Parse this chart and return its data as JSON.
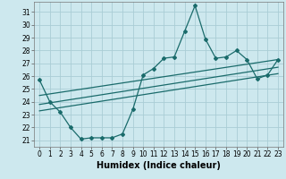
{
  "xlabel": "Humidex (Indice chaleur)",
  "bg_color": "#cde8ee",
  "grid_color": "#aacdd5",
  "line_color": "#1a6b6b",
  "xlim": [
    -0.5,
    23.5
  ],
  "ylim_min": 20.5,
  "ylim_max": 31.8,
  "yticks": [
    21,
    22,
    23,
    24,
    25,
    26,
    27,
    28,
    29,
    30,
    31
  ],
  "xticks": [
    0,
    1,
    2,
    3,
    4,
    5,
    6,
    7,
    8,
    9,
    10,
    11,
    12,
    13,
    14,
    15,
    16,
    17,
    18,
    19,
    20,
    21,
    22,
    23
  ],
  "main_x": [
    0,
    1,
    2,
    3,
    4,
    5,
    6,
    7,
    8,
    9,
    10,
    11,
    12,
    13,
    14,
    15,
    16,
    17,
    18,
    19,
    20,
    21,
    22,
    23
  ],
  "main_y": [
    25.7,
    24.0,
    23.2,
    22.0,
    21.1,
    21.2,
    21.2,
    21.2,
    21.5,
    23.4,
    26.1,
    26.6,
    27.4,
    27.5,
    29.5,
    31.5,
    28.9,
    27.4,
    27.5,
    28.0,
    27.3,
    25.8,
    26.1,
    27.3
  ],
  "reg_lines": [
    {
      "x": [
        0,
        23
      ],
      "y": [
        24.5,
        27.3
      ]
    },
    {
      "x": [
        0,
        23
      ],
      "y": [
        23.8,
        26.7
      ]
    },
    {
      "x": [
        0,
        23
      ],
      "y": [
        23.3,
        26.2
      ]
    }
  ],
  "xlabel_fontsize": 7,
  "tick_fontsize": 5.5,
  "marker_size": 2.0,
  "line_width": 0.9
}
